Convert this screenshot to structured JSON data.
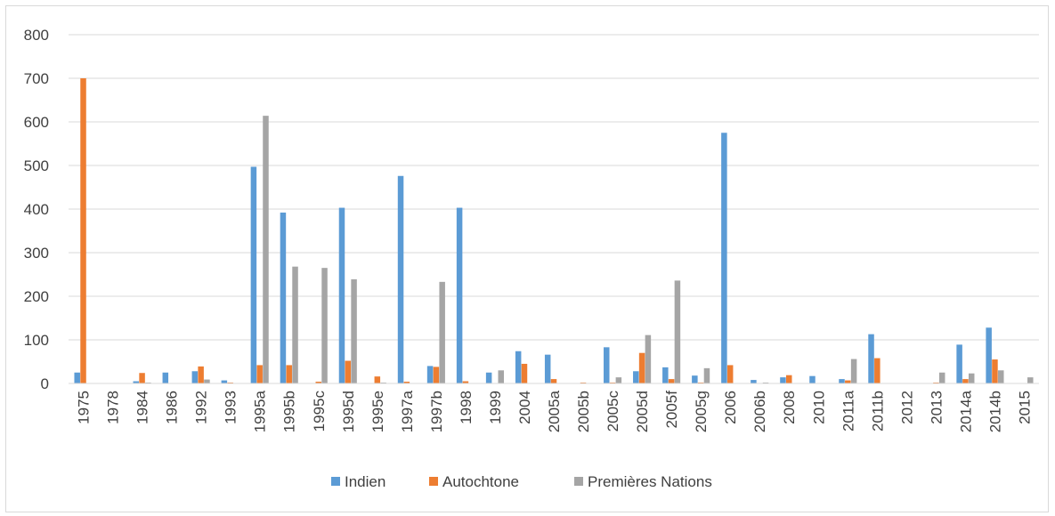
{
  "chart_data": {
    "type": "bar",
    "title": "",
    "xlabel": "",
    "ylabel": "",
    "ylim": [
      0,
      800
    ],
    "yticks": [
      0,
      100,
      200,
      300,
      400,
      500,
      600,
      700,
      800
    ],
    "grid": true,
    "legend_position": "bottom",
    "categories": [
      "1975",
      "1978",
      "1984",
      "1986",
      "1992",
      "1993",
      "1995a",
      "1995b",
      "1995c",
      "1995d",
      "1995e",
      "1997a",
      "1997b",
      "1998",
      "1999",
      "2004",
      "2005a",
      "2005b",
      "2005c",
      "2005d",
      "2005f",
      "2005g",
      "2006",
      "2006b",
      "2008",
      "2010",
      "2011a",
      "2011b",
      "2012",
      "2013",
      "2014a",
      "2014b",
      "2015"
    ],
    "series": [
      {
        "name": "Indien",
        "color": "#5b9bd5",
        "values": [
          25,
          0,
          5,
          25,
          28,
          7,
          497,
          392,
          0,
          403,
          0,
          476,
          40,
          403,
          25,
          74,
          66,
          0,
          83,
          28,
          37,
          18,
          575,
          8,
          14,
          17,
          10,
          113,
          0,
          0,
          89,
          128,
          0
        ]
      },
      {
        "name": "Autochtone",
        "color": "#ed7d31",
        "values": [
          700,
          0,
          24,
          0,
          39,
          2,
          42,
          42,
          4,
          52,
          16,
          4,
          38,
          5,
          0,
          45,
          10,
          2,
          2,
          70,
          10,
          2,
          42,
          0,
          19,
          0,
          7,
          58,
          0,
          2,
          10,
          55,
          0
        ]
      },
      {
        "name": "Premières Nations",
        "color": "#a5a5a5",
        "values": [
          0,
          0,
          2,
          0,
          9,
          0,
          614,
          268,
          265,
          239,
          2,
          0,
          233,
          0,
          30,
          0,
          0,
          0,
          14,
          111,
          236,
          35,
          0,
          2,
          0,
          0,
          56,
          0,
          0,
          25,
          23,
          30,
          14
        ]
      }
    ]
  }
}
